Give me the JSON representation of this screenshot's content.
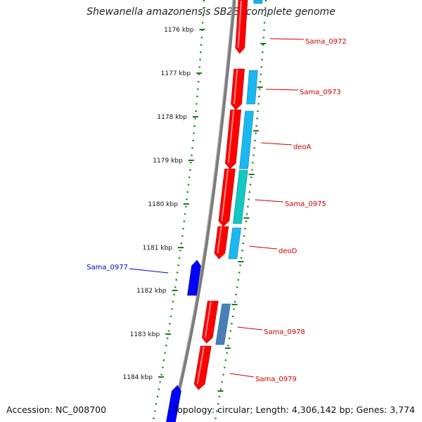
{
  "title": "Shewanella amazonensis SB2B, complete genome",
  "accession": "Accession: NC_008700",
  "summary": "Topology: circular; Length: 4,306,142 bp; Genes: 3,774",
  "colors": {
    "forward_gene": "#ff0000",
    "reverse_gene": "#0000ff",
    "cds_light_blue": "#1ab8f0",
    "cds_teal": "#12c8c0",
    "cds_steel": "#4a7fb5",
    "backbone": "#808080",
    "tick": "#1a7a1a",
    "label_forward": "#cc0000",
    "label_reverse": "#0000cc"
  },
  "scale": {
    "ticks": [
      "1176 kbp",
      "1177 kbp",
      "1178 kbp",
      "1179 kbp",
      "1180 kbp",
      "1181 kbp",
      "1182 kbp",
      "1183 kbp",
      "1184 kbp"
    ]
  },
  "genes": [
    {
      "name": "Sama_0972",
      "strand": "+"
    },
    {
      "name": "Sama_0973",
      "strand": "+"
    },
    {
      "name": "deoA",
      "strand": "+"
    },
    {
      "name": "Sama_0975",
      "strand": "+"
    },
    {
      "name": "deoD",
      "strand": "+"
    },
    {
      "name": "Sama_0977",
      "strand": "-"
    },
    {
      "name": "Sama_0978",
      "strand": "+"
    },
    {
      "name": "Sama_0979",
      "strand": "+"
    }
  ]
}
